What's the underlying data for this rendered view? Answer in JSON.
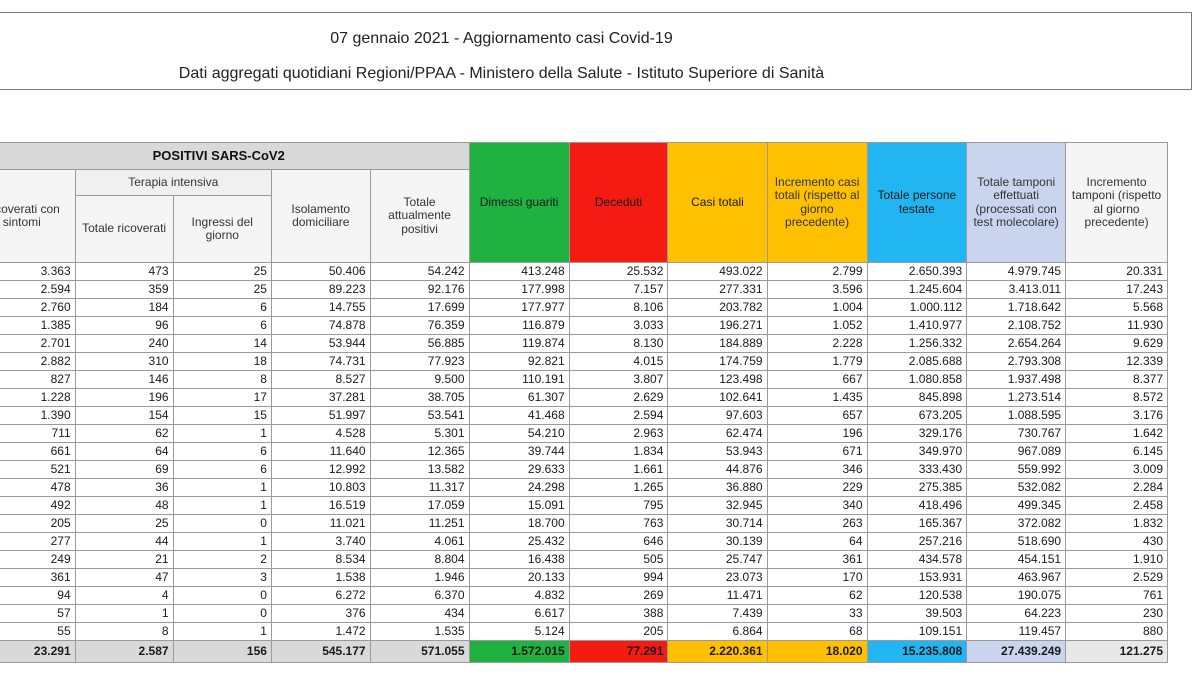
{
  "header": {
    "line1": "07 gennaio 2021 - Aggiornamento casi Covid-19",
    "line2": "Dati aggregati quotidiani Regioni/PPAA - Ministero della Salute - Istituto Superiore di Sanità"
  },
  "table": {
    "group_positivi": "POSITIVI SARS-CoV2",
    "group_terapia": "Terapia intensiva",
    "col_ricoverati": "Ricoverati con sintomi",
    "col_ti_totale": "Totale ricoverati",
    "col_ti_ingressi": "Ingressi del giorno",
    "col_isolamento": "Isolamento domiciliare",
    "col_totale_positivi": "Totale attualmente positivi",
    "col_dimessi": "Dimessi guariti",
    "col_deceduti": "Deceduti",
    "col_casi_totali": "Casi totali",
    "col_incremento_casi": "Incremento casi totali (rispetto al giorno precedente)",
    "col_persone_testate": "Totale persone testate",
    "col_tamponi": "Totale tamponi effettuati (processati con test molecolare)",
    "col_incremento_tamponi": "Incremento tamponi (rispetto al giorno precedente)",
    "rows": [
      [
        "3.363",
        "473",
        "25",
        "50.406",
        "54.242",
        "413.248",
        "25.532",
        "493.022",
        "2.799",
        "2.650.393",
        "4.979.745",
        "20.331"
      ],
      [
        "2.594",
        "359",
        "25",
        "89.223",
        "92.176",
        "177.998",
        "7.157",
        "277.331",
        "3.596",
        "1.245.604",
        "3.413.011",
        "17.243"
      ],
      [
        "2.760",
        "184",
        "6",
        "14.755",
        "17.699",
        "177.977",
        "8.106",
        "203.782",
        "1.004",
        "1.000.112",
        "1.718.642",
        "5.568"
      ],
      [
        "1.385",
        "96",
        "6",
        "74.878",
        "76.359",
        "116.879",
        "3.033",
        "196.271",
        "1.052",
        "1.410.977",
        "2.108.752",
        "11.930"
      ],
      [
        "2.701",
        "240",
        "14",
        "53.944",
        "56.885",
        "119.874",
        "8.130",
        "184.889",
        "2.228",
        "1.256.332",
        "2.654.264",
        "9.629"
      ],
      [
        "2.882",
        "310",
        "18",
        "74.731",
        "77.923",
        "92.821",
        "4.015",
        "174.759",
        "1.779",
        "2.085.688",
        "2.793.308",
        "12.339"
      ],
      [
        "827",
        "146",
        "8",
        "8.527",
        "9.500",
        "110.191",
        "3.807",
        "123.498",
        "667",
        "1.080.858",
        "1.937.498",
        "8.377"
      ],
      [
        "1.228",
        "196",
        "17",
        "37.281",
        "38.705",
        "61.307",
        "2.629",
        "102.641",
        "1.435",
        "845.898",
        "1.273.514",
        "8.572"
      ],
      [
        "1.390",
        "154",
        "15",
        "51.997",
        "53.541",
        "41.468",
        "2.594",
        "97.603",
        "657",
        "673.205",
        "1.088.595",
        "3.176"
      ],
      [
        "711",
        "62",
        "1",
        "4.528",
        "5.301",
        "54.210",
        "2.963",
        "62.474",
        "196",
        "329.176",
        "730.767",
        "1.642"
      ],
      [
        "661",
        "64",
        "6",
        "11.640",
        "12.365",
        "39.744",
        "1.834",
        "53.943",
        "671",
        "349.970",
        "967.089",
        "6.145"
      ],
      [
        "521",
        "69",
        "6",
        "12.992",
        "13.582",
        "29.633",
        "1.661",
        "44.876",
        "346",
        "333.430",
        "559.992",
        "3.009"
      ],
      [
        "478",
        "36",
        "1",
        "10.803",
        "11.317",
        "24.298",
        "1.265",
        "36.880",
        "229",
        "275.385",
        "532.082",
        "2.284"
      ],
      [
        "492",
        "48",
        "1",
        "16.519",
        "17.059",
        "15.091",
        "795",
        "32.945",
        "340",
        "418.496",
        "499.345",
        "2.458"
      ],
      [
        "205",
        "25",
        "0",
        "11.021",
        "11.251",
        "18.700",
        "763",
        "30.714",
        "263",
        "165.367",
        "372.082",
        "1.832"
      ],
      [
        "277",
        "44",
        "1",
        "3.740",
        "4.061",
        "25.432",
        "646",
        "30.139",
        "64",
        "257.216",
        "518.690",
        "430"
      ],
      [
        "249",
        "21",
        "2",
        "8.534",
        "8.804",
        "16.438",
        "505",
        "25.747",
        "361",
        "434.578",
        "454.151",
        "1.910"
      ],
      [
        "361",
        "47",
        "3",
        "1.538",
        "1.946",
        "20.133",
        "994",
        "23.073",
        "170",
        "153.931",
        "463.967",
        "2.529"
      ],
      [
        "94",
        "4",
        "0",
        "6.272",
        "6.370",
        "4.832",
        "269",
        "11.471",
        "62",
        "120.538",
        "190.075",
        "761"
      ],
      [
        "57",
        "1",
        "0",
        "376",
        "434",
        "6.617",
        "388",
        "7.439",
        "33",
        "39.503",
        "64.223",
        "230"
      ],
      [
        "55",
        "8",
        "1",
        "1.472",
        "1.535",
        "5.124",
        "205",
        "6.864",
        "68",
        "109.151",
        "119.457",
        "880"
      ]
    ],
    "totals": [
      "23.291",
      "2.587",
      "156",
      "545.177",
      "571.055",
      "1.572.015",
      "77.291",
      "2.220.361",
      "18.020",
      "15.235.808",
      "27.439.249",
      "121.275"
    ]
  },
  "colors": {
    "green": "#1fb241",
    "red": "#f41b12",
    "orange": "#ffc000",
    "blue": "#21b6f2",
    "lavender": "#c9d5ef",
    "gray": "#d9d9d9"
  }
}
